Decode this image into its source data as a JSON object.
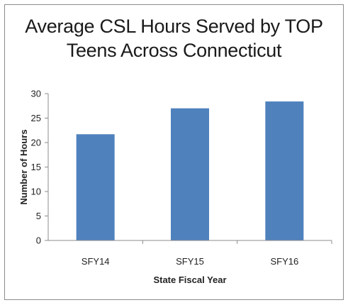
{
  "chart_data": {
    "type": "bar",
    "title_line1": "Average CSL Hours Served by TOP",
    "title_line2": "Teens Across Connecticut",
    "xlabel": "State Fiscal Year",
    "ylabel": "Number of Hours",
    "categories": [
      "SFY14",
      "SFY15",
      "SFY16"
    ],
    "values": [
      21.7,
      27,
      28.4
    ],
    "ylim": [
      0,
      30
    ],
    "yticks": [
      "0",
      "5",
      "10",
      "15",
      "20",
      "25",
      "30"
    ],
    "bar_color": "#4f81bd",
    "grid": false,
    "legend": "none"
  }
}
